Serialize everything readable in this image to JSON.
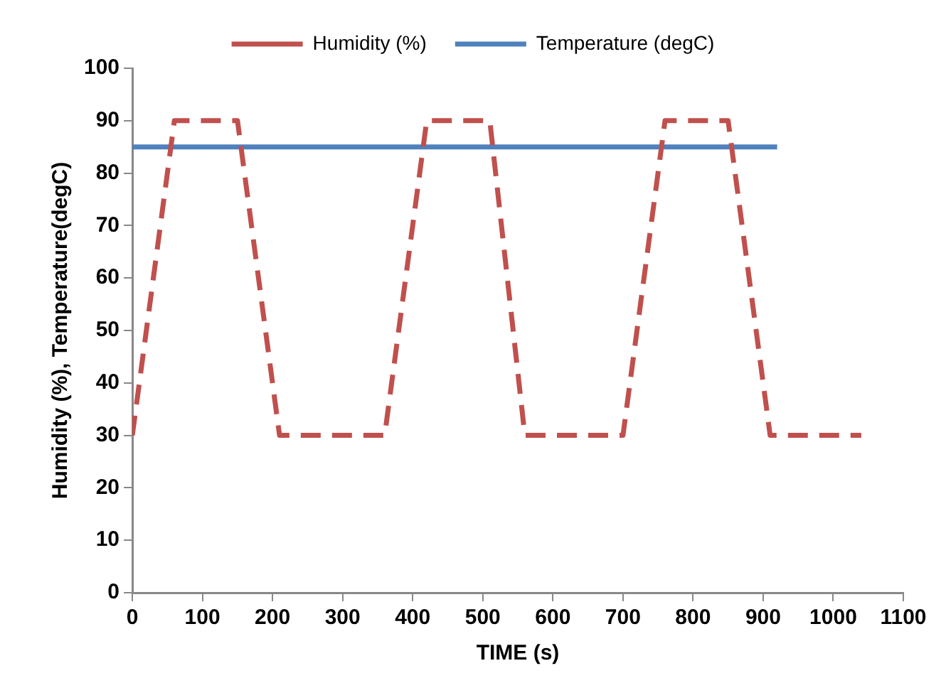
{
  "chart_data": {
    "type": "line",
    "xlabel": "TIME (s)",
    "ylabel": "Humidity (%), Temperature(degC)",
    "xlim": [
      0,
      1100
    ],
    "xticks": [
      0,
      100,
      200,
      300,
      400,
      500,
      600,
      700,
      800,
      900,
      1000,
      1100
    ],
    "ylim": [
      0,
      100
    ],
    "yticks": [
      0,
      10,
      20,
      30,
      40,
      50,
      60,
      70,
      80,
      90,
      100
    ],
    "grid": false,
    "legend": "top",
    "marker": "none",
    "series": [
      {
        "name": "Humidity (%)",
        "color": "#c0504d",
        "line_style": "dashed",
        "x": [
          0,
          60,
          150,
          210,
          360,
          420,
          510,
          560,
          700,
          760,
          850,
          910,
          1040
        ],
        "values": [
          30,
          90,
          90,
          30,
          30,
          90,
          90,
          30,
          30,
          90,
          90,
          30,
          30
        ]
      },
      {
        "name": "Temperature (degC)",
        "color": "#4f81bd",
        "line_style": "solid",
        "x": [
          0,
          920
        ],
        "values": [
          85,
          85
        ]
      }
    ]
  }
}
